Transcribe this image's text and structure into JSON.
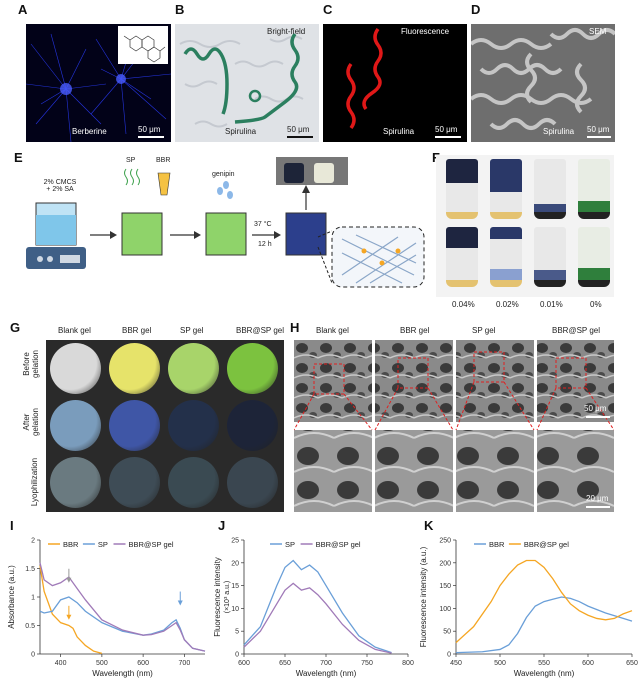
{
  "panel_letters": {
    "A": "A",
    "B": "B",
    "C": "C",
    "D": "D",
    "E": "E",
    "F": "F",
    "G": "G",
    "H": "H",
    "I": "I",
    "J": "J",
    "K": "K"
  },
  "panelA": {
    "label": "Berberine",
    "scale": "50 μm"
  },
  "panelB": {
    "mode": "Bright-field",
    "label": "Spirulina",
    "scale": "50 μm"
  },
  "panelC": {
    "mode": "Fluorescence",
    "label": "Spirulina",
    "scale": "50 μm"
  },
  "panelD": {
    "mode": "SEM",
    "label": "Spirulina",
    "scale": "50 μm"
  },
  "panelE": {
    "step1": "2% CMCS\n+ 2% SA",
    "sp": "SP",
    "bbr": "BBR",
    "genipin": "genipin",
    "temp": "37 °C",
    "time": "12 h"
  },
  "panelF": {
    "concentrations": [
      "0.04%",
      "0.02%",
      "0.01%",
      "0%"
    ]
  },
  "panelG": {
    "columns": [
      "Blank gel",
      "BBR gel",
      "SP gel",
      "BBR@SP gel"
    ],
    "rows": [
      "Before\ngelation",
      "After\ngelation",
      "Lyophilization"
    ],
    "colors": {
      "before": [
        "#d9d9d9",
        "#e6e36a",
        "#a8d46a",
        "#7cc23f"
      ],
      "after": [
        "#7a9cbc",
        "#3f56a6",
        "#23304a",
        "#1d2438"
      ],
      "lyo": [
        "#6a7a80",
        "#3e4c56",
        "#3a4a52",
        "#3a4650"
      ]
    }
  },
  "panelH": {
    "columns": [
      "Blank gel",
      "BBR gel",
      "SP gel",
      "BBR@SP gel"
    ],
    "scale_top": "50 μm",
    "scale_bottom": "20 μm"
  },
  "chart_data": [
    {
      "panel": "I",
      "type": "line",
      "xlabel": "Wavelength (nm)",
      "ylabel": "Absorbance (a.u.)",
      "xlim": [
        350,
        750
      ],
      "ylim": [
        0,
        2.0
      ],
      "xticks": [
        400,
        500,
        600,
        700
      ],
      "yticks": [
        0.0,
        0.5,
        1.0,
        1.5,
        2.0
      ],
      "legend": "top",
      "series": [
        {
          "name": "BBR",
          "color": "#f5a623",
          "x": [
            350,
            360,
            380,
            400,
            420,
            430,
            440,
            460,
            480,
            500
          ],
          "values": [
            1.55,
            1.1,
            0.7,
            0.55,
            0.5,
            0.45,
            0.3,
            0.15,
            0.05,
            0.01
          ]
        },
        {
          "name": "SP",
          "color": "#6a9fd8",
          "x": [
            350,
            360,
            380,
            400,
            420,
            440,
            460,
            500,
            550,
            600,
            620,
            650,
            670,
            680,
            690,
            700,
            720,
            750
          ],
          "values": [
            0.75,
            0.72,
            0.75,
            0.95,
            1.0,
            0.9,
            0.75,
            0.55,
            0.4,
            0.33,
            0.35,
            0.42,
            0.55,
            0.6,
            0.45,
            0.25,
            0.1,
            0.05
          ]
        },
        {
          "name": "BBR@SP gel",
          "color": "#a07ab8",
          "x": [
            350,
            360,
            380,
            400,
            420,
            440,
            460,
            500,
            550,
            600,
            620,
            650,
            670,
            680,
            690,
            700,
            720,
            750
          ],
          "values": [
            1.6,
            1.3,
            1.2,
            1.25,
            1.35,
            1.15,
            0.95,
            0.6,
            0.42,
            0.33,
            0.34,
            0.4,
            0.5,
            0.55,
            0.42,
            0.25,
            0.1,
            0.05
          ]
        }
      ]
    },
    {
      "panel": "J",
      "type": "line",
      "xlabel": "Wavelength (nm)",
      "ylabel": "Fluorescence intensity",
      "ylabel2": "(×10³ a.u.)",
      "xlim": [
        600,
        800
      ],
      "ylim": [
        0,
        25
      ],
      "xticks": [
        600,
        650,
        700,
        750,
        800
      ],
      "yticks": [
        0,
        5,
        10,
        15,
        20,
        25
      ],
      "legend": "top",
      "series": [
        {
          "name": "SP",
          "color": "#6a9fd8",
          "x": [
            600,
            620,
            640,
            650,
            660,
            670,
            680,
            690,
            700,
            720,
            740,
            760,
            780
          ],
          "values": [
            2,
            6,
            15,
            19,
            20.5,
            18.5,
            19.5,
            18,
            15,
            9,
            4,
            1.5,
            0.3
          ]
        },
        {
          "name": "BBR@SP gel",
          "color": "#a07ab8",
          "x": [
            600,
            620,
            640,
            650,
            660,
            670,
            680,
            690,
            700,
            720,
            740,
            760,
            780
          ],
          "values": [
            1.5,
            5,
            11,
            14,
            15.5,
            14,
            14.5,
            13,
            11,
            6.5,
            3,
            1,
            0.2
          ]
        }
      ]
    },
    {
      "panel": "K",
      "type": "line",
      "xlabel": "Wavelength (nm)",
      "ylabel": "Fluorescence intensity (a.u.)",
      "xlim": [
        450,
        650
      ],
      "ylim": [
        0,
        250
      ],
      "xticks": [
        450,
        500,
        550,
        600,
        650
      ],
      "yticks": [
        0,
        50,
        100,
        150,
        200,
        250
      ],
      "legend": "top",
      "series": [
        {
          "name": "BBR",
          "color": "#6a9fd8",
          "x": [
            450,
            480,
            500,
            510,
            520,
            530,
            540,
            550,
            560,
            570,
            580,
            590,
            600,
            620,
            640,
            650
          ],
          "values": [
            3,
            5,
            10,
            20,
            45,
            80,
            105,
            115,
            120,
            125,
            122,
            115,
            105,
            90,
            78,
            72
          ]
        },
        {
          "name": "BBR@SP gel",
          "color": "#f5a623",
          "x": [
            450,
            470,
            490,
            500,
            510,
            520,
            530,
            540,
            550,
            560,
            570,
            580,
            590,
            600,
            610,
            620,
            630,
            640,
            650
          ],
          "values": [
            25,
            60,
            115,
            150,
            175,
            195,
            205,
            205,
            190,
            165,
            135,
            110,
            95,
            85,
            78,
            75,
            78,
            88,
            95
          ]
        }
      ]
    }
  ]
}
